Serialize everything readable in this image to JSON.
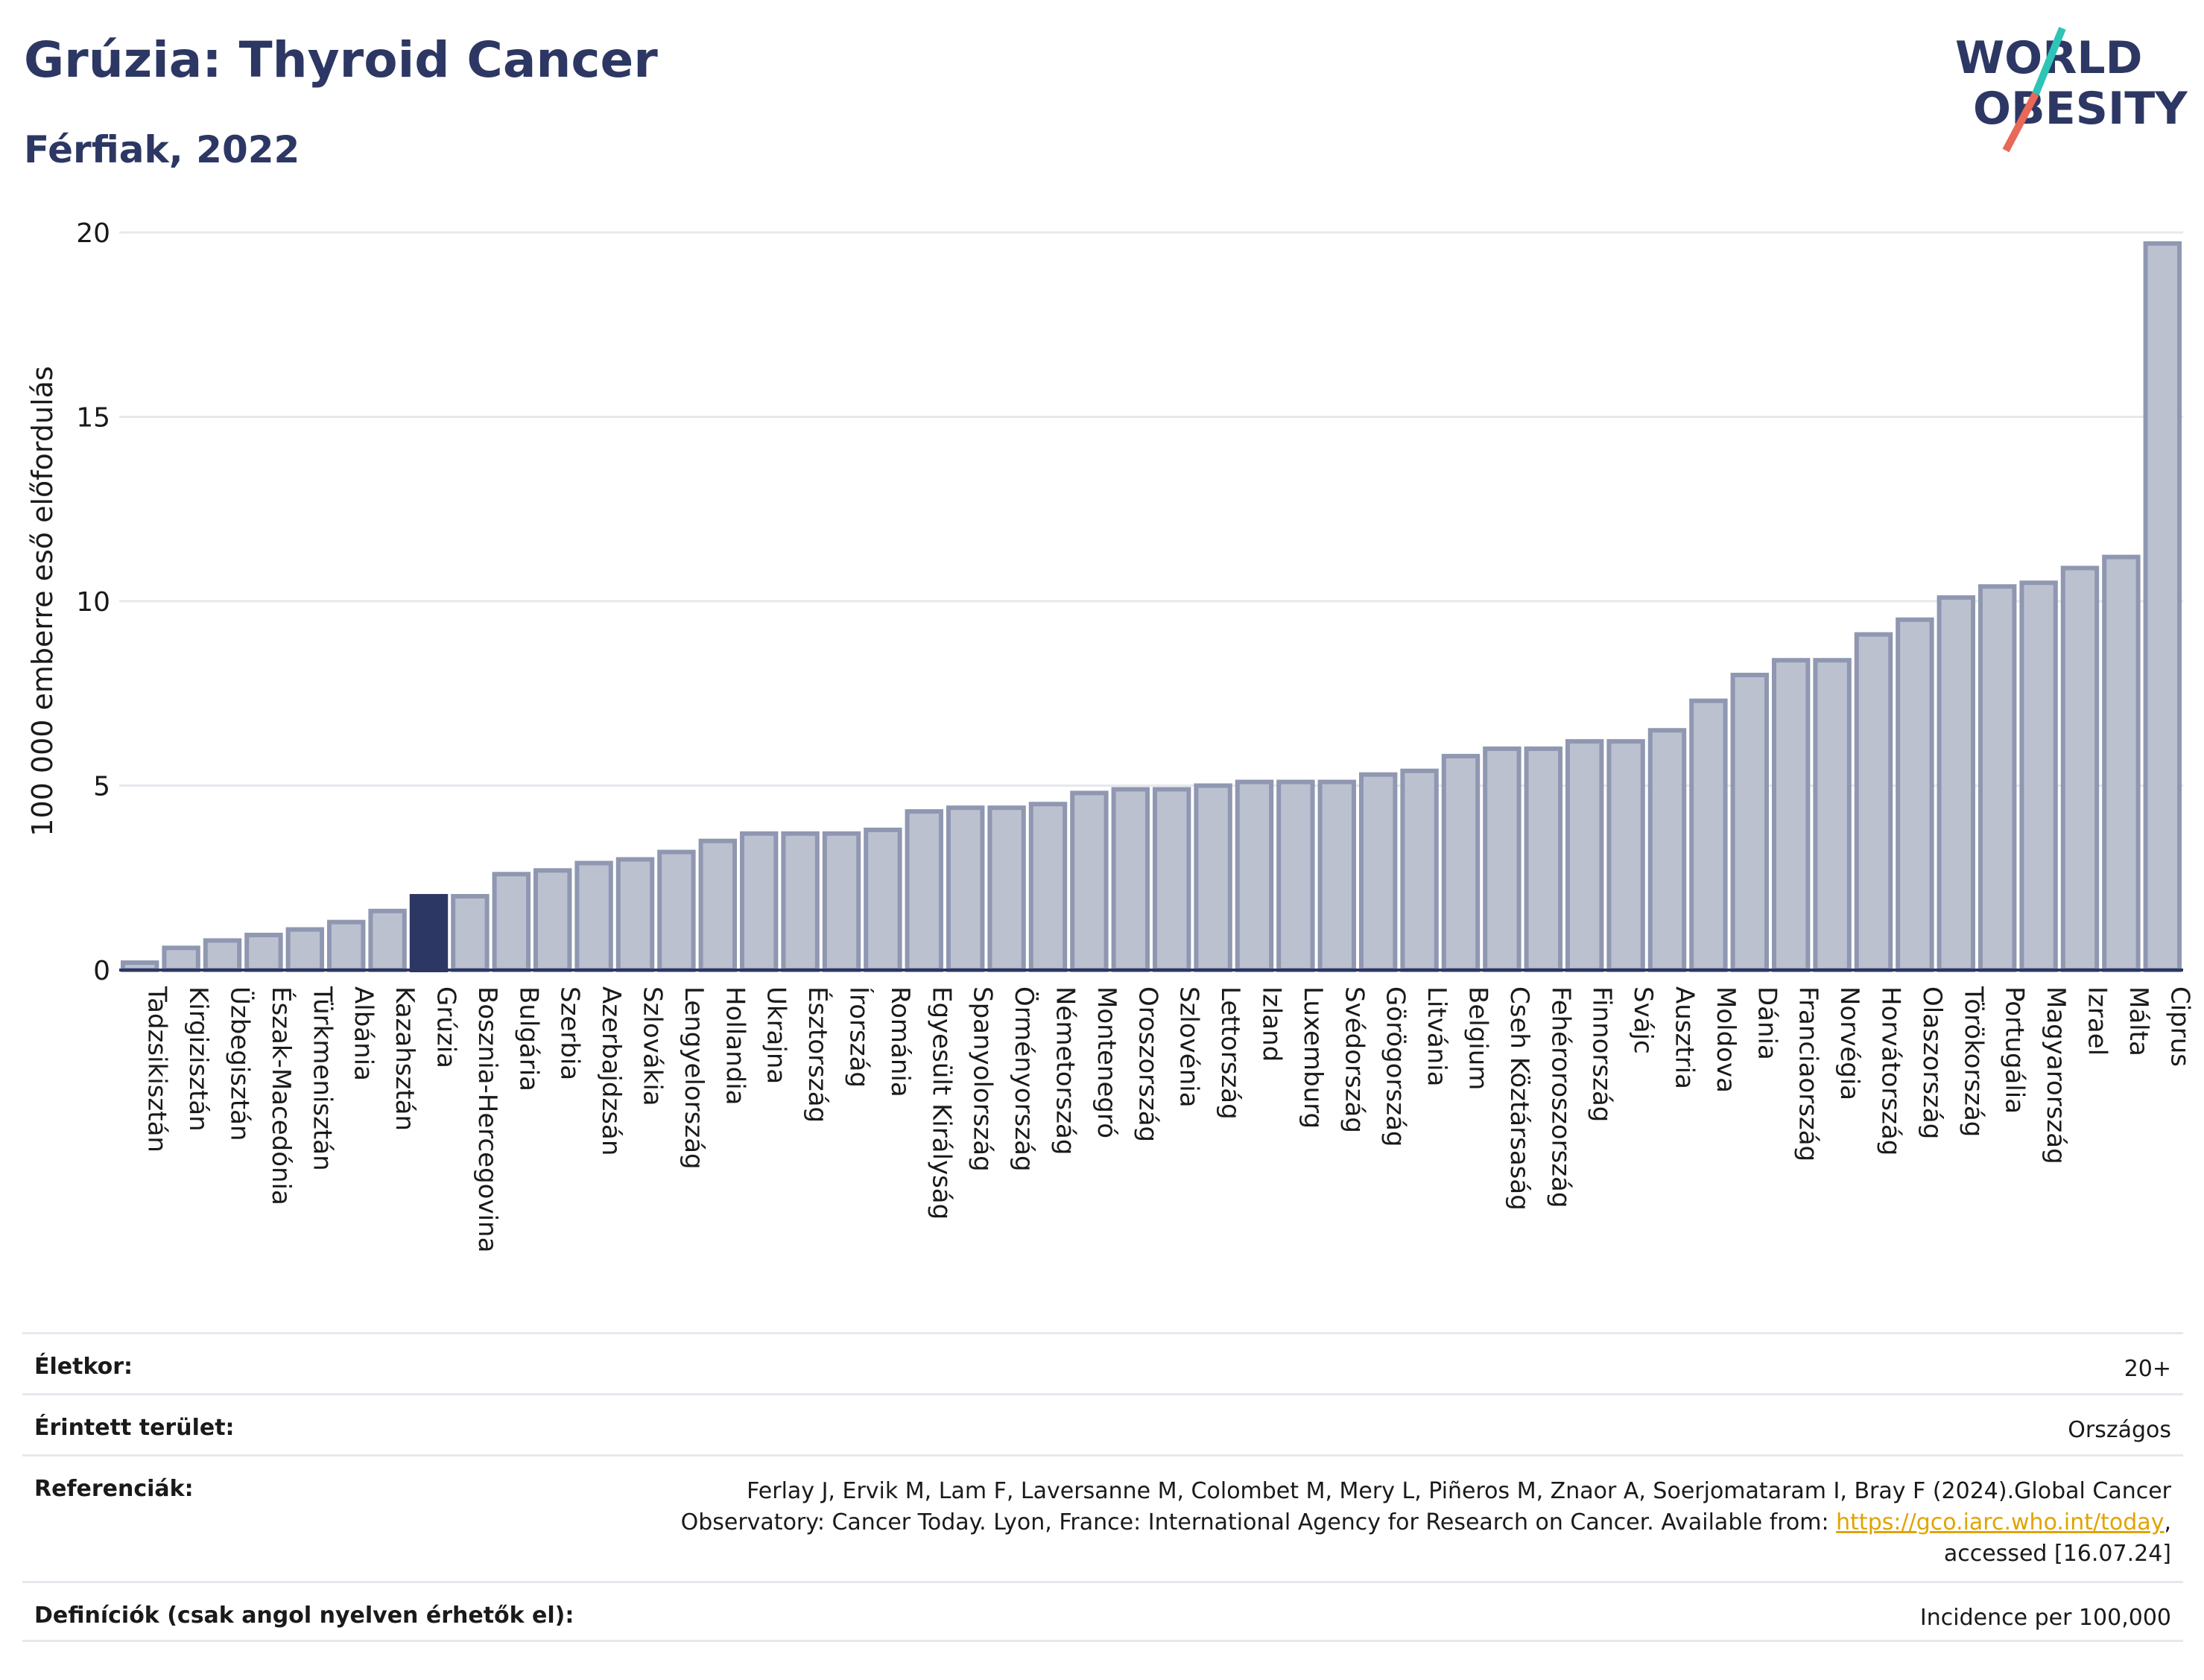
{
  "header": {
    "title": "Grúzia: Thyroid Cancer",
    "subtitle": "Férfiak, 2022",
    "logo_line1": "WORLD",
    "logo_line2": "OBESITY"
  },
  "colors": {
    "bar": "#bcc1cf",
    "bar_stroke": "#8f97b1",
    "highlight": "#2d3763",
    "axis": "#2d3763",
    "grid": "#e6e8ee",
    "logo_teal": "#2ec4b6",
    "logo_red": "#e8685a"
  },
  "chart_data": {
    "type": "bar",
    "ylabel": "100 000 emberre eső előfordulás",
    "ylim": [
      0,
      20
    ],
    "yticks": [
      0,
      5,
      10,
      15,
      20
    ],
    "grid": true,
    "highlight": "Grúzia",
    "categories": [
      "Tadzsikisztán",
      "Kirgizisztán",
      "Üzbegisztán",
      "Észak-Macedónia",
      "Türkmenisztán",
      "Albánia",
      "Kazahsztán",
      "Grúzia",
      "Bosznia-Hercegovina",
      "Bulgária",
      "Szerbia",
      "Azerbajdzsán",
      "Szlovákia",
      "Lengyelország",
      "Hollandia",
      "Ukrajna",
      "Észtország",
      "Írország",
      "Románia",
      "Egyesült Királyság",
      "Spanyolország",
      "Örményország",
      "Németország",
      "Montenegró",
      "Oroszország",
      "Szlovénia",
      "Lettország",
      "Izland",
      "Luxemburg",
      "Svédország",
      "Görögország",
      "Litvánia",
      "Belgium",
      "Cseh Köztársaság",
      "Fehéroroszország",
      "Finnország",
      "Svájc",
      "Ausztria",
      "Moldova",
      "Dánia",
      "Franciaország",
      "Norvégia",
      "Horvátország",
      "Olaszország",
      "Törökország",
      "Portugália",
      "Magyarország",
      "Izrael",
      "Málta",
      "Ciprus"
    ],
    "values": [
      0.2,
      0.6,
      0.8,
      0.95,
      1.1,
      1.3,
      1.6,
      2.0,
      2.0,
      2.6,
      2.7,
      2.9,
      3.0,
      3.2,
      3.5,
      3.7,
      3.7,
      3.7,
      3.8,
      4.3,
      4.4,
      4.4,
      4.5,
      4.8,
      4.9,
      4.9,
      5.0,
      5.1,
      5.1,
      5.1,
      5.3,
      5.4,
      5.8,
      6.0,
      6.0,
      6.2,
      6.2,
      6.5,
      7.3,
      8.0,
      8.4,
      8.4,
      9.1,
      9.5,
      10.1,
      10.4,
      10.5,
      10.9,
      11.2,
      19.7
    ]
  },
  "info": {
    "age_label": "Életkor:",
    "age_value": "20+",
    "area_label": "Érintett terület:",
    "area_value": "Országos",
    "ref_label": "Referenciák:",
    "ref_text_1": "Ferlay J, Ervik M, Lam F, Laversanne M, Colombet M, Mery L, Piñeros M, Znaor A, Soerjomataram I, Bray F (2024).Global Cancer",
    "ref_text_2": "Observatory: Cancer Today. Lyon, France: International Agency for Research on Cancer. Available from: ",
    "ref_link": "https://gco.iarc.who.int/today",
    "ref_text_3": ",",
    "ref_text_4": "accessed [16.07.24]",
    "def_label": "Definíciók (csak angol nyelven érhetők el):",
    "def_value": "Incidence per 100,000"
  }
}
